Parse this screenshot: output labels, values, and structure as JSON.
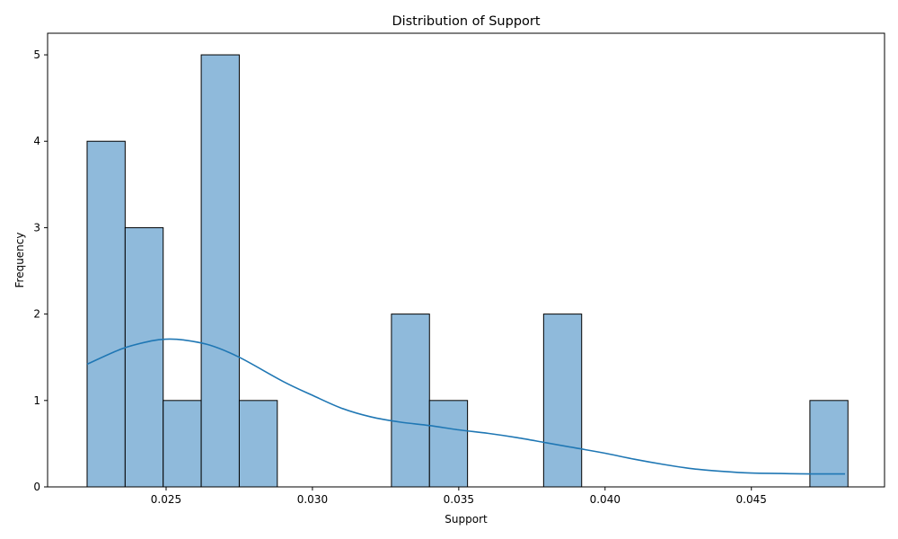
{
  "chart_data": {
    "type": "bar",
    "title": "Distribution of Support",
    "xlabel": "Support",
    "ylabel": "Frequency",
    "xlim": [
      0.02095,
      0.04955
    ],
    "ylim": [
      0,
      5.25
    ],
    "x_ticks": [
      0.025,
      0.03,
      0.035,
      0.04,
      0.045
    ],
    "x_tick_labels": [
      "0.025",
      "0.030",
      "0.035",
      "0.040",
      "0.045"
    ],
    "y_ticks": [
      0,
      1,
      2,
      3,
      4,
      5
    ],
    "y_tick_labels": [
      "0",
      "1",
      "2",
      "3",
      "4",
      "5"
    ],
    "grid": false,
    "bins": {
      "start": 0.0223,
      "width": 0.0013,
      "counts": [
        4,
        3,
        1,
        5,
        1,
        0,
        0,
        0,
        2,
        1,
        0,
        0,
        2,
        0,
        0,
        0,
        0,
        0,
        0,
        1
      ]
    },
    "kde": {
      "name": "",
      "x": [
        0.0223,
        0.0235,
        0.0245,
        0.025,
        0.0256,
        0.0265,
        0.0275,
        0.029,
        0.03,
        0.031,
        0.032,
        0.033,
        0.034,
        0.035,
        0.036,
        0.037,
        0.038,
        0.039,
        0.04,
        0.041,
        0.042,
        0.043,
        0.044,
        0.045,
        0.046,
        0.047,
        0.0482
      ],
      "y": [
        1.42,
        1.6,
        1.69,
        1.71,
        1.7,
        1.64,
        1.5,
        1.22,
        1.06,
        0.91,
        0.81,
        0.75,
        0.71,
        0.66,
        0.62,
        0.57,
        0.51,
        0.45,
        0.39,
        0.32,
        0.26,
        0.21,
        0.18,
        0.16,
        0.155,
        0.15,
        0.15
      ]
    },
    "colors": {
      "bar_fill": "#8fbadb",
      "bar_edge": "#000000",
      "line": "#1f77b4"
    }
  }
}
